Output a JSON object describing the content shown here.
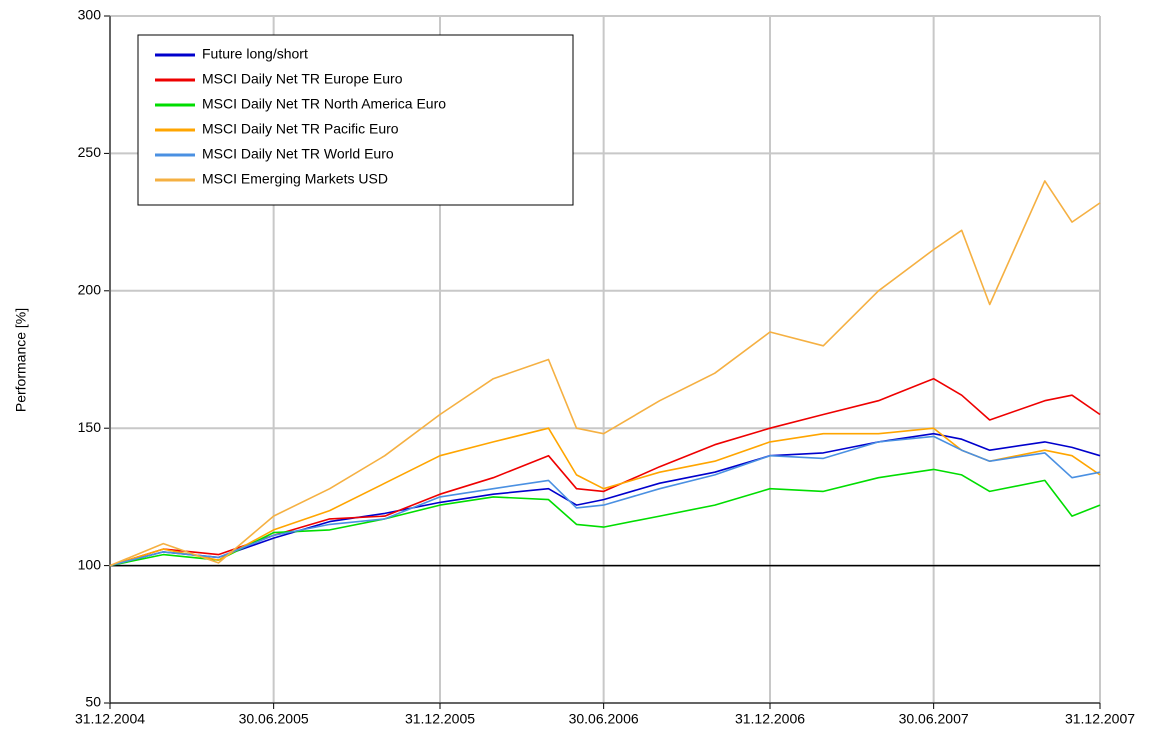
{
  "chart_data": {
    "type": "line",
    "ylabel": "Performance [%]",
    "x": [
      "31.12.2004",
      "28.02.2005",
      "30.04.2005",
      "30.06.2005",
      "31.08.2005",
      "31.10.2005",
      "31.12.2005",
      "28.02.2006",
      "30.04.2006",
      "31.05.2006",
      "30.06.2006",
      "31.08.2006",
      "31.10.2006",
      "31.12.2006",
      "28.02.2007",
      "30.04.2007",
      "30.06.2007",
      "31.07.2007",
      "31.08.2007",
      "31.10.2007",
      "30.11.2007",
      "31.12.2007"
    ],
    "series": [
      {
        "name": "Future long/short",
        "color": "#0000cc",
        "values": [
          100,
          105,
          103,
          110,
          116,
          119,
          123,
          126,
          128,
          122,
          124,
          130,
          134,
          140,
          141,
          145,
          148,
          146,
          142,
          145,
          143,
          140
        ]
      },
      {
        "name": "MSCI Daily Net TR Europe Euro",
        "color": "#ee0000",
        "values": [
          100,
          106,
          104,
          111,
          117,
          118,
          126,
          132,
          140,
          128,
          127,
          136,
          144,
          150,
          155,
          160,
          168,
          162,
          153,
          160,
          162,
          155
        ]
      },
      {
        "name": "MSCI Daily Net TR North America Euro",
        "color": "#00dd00",
        "values": [
          100,
          104,
          102,
          112,
          113,
          117,
          122,
          125,
          124,
          115,
          114,
          118,
          122,
          128,
          127,
          132,
          135,
          133,
          127,
          131,
          118,
          122
        ]
      },
      {
        "name": "MSCI Daily Net TR Pacific Euro",
        "color": "#ffa500",
        "values": [
          100,
          106,
          102,
          113,
          120,
          130,
          140,
          145,
          150,
          133,
          128,
          134,
          138,
          145,
          148,
          148,
          150,
          142,
          138,
          142,
          140,
          133
        ]
      },
      {
        "name": "MSCI Daily Net TR World Euro",
        "color": "#4a90e2",
        "values": [
          100,
          105,
          103,
          111,
          115,
          117,
          125,
          128,
          131,
          121,
          122,
          128,
          133,
          140,
          139,
          145,
          147,
          142,
          138,
          141,
          132,
          134
        ]
      },
      {
        "name": "MSCI Emerging Markets USD",
        "color": "#f5b042",
        "values": [
          100,
          108,
          101,
          118,
          128,
          140,
          155,
          168,
          175,
          150,
          148,
          160,
          170,
          185,
          180,
          200,
          215,
          222,
          195,
          240,
          225,
          232
        ]
      }
    ],
    "xlim": [
      "31.12.2004",
      "31.12.2007"
    ],
    "xticks": [
      "31.12.2004",
      "30.06.2005",
      "31.12.2005",
      "30.06.2006",
      "31.12.2006",
      "30.06.2007",
      "31.12.2007"
    ],
    "ylim": [
      50,
      300
    ],
    "yticks": [
      50,
      100,
      150,
      200,
      250,
      300
    ],
    "reference_line": 100,
    "grid": true,
    "legend": "upper-left"
  }
}
